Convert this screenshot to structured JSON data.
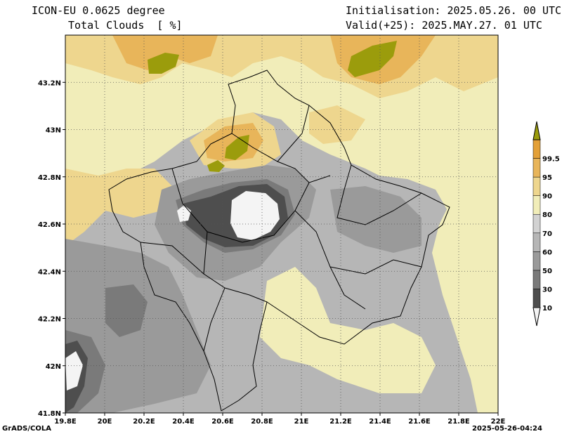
{
  "header": {
    "model": "ICON-EU 0.0625 degree",
    "variable": "Total Clouds  [ %]",
    "init": "Initialisation: 2025.05.26. 00 UTC",
    "valid": "Valid(+25): 2025.MAY.27. 01 UTC"
  },
  "map": {
    "lon_range": [
      19.8,
      22.0
    ],
    "lat_range": [
      41.8,
      43.4
    ],
    "x_ticks": [
      "19.8E",
      "20E",
      "20.2E",
      "20.4E",
      "20.6E",
      "20.8E",
      "21E",
      "21.2E",
      "21.4E",
      "21.6E",
      "21.8E",
      "22E"
    ],
    "y_ticks": [
      "41.8N",
      "42N",
      "42.2N",
      "42.4N",
      "42.6N",
      "42.8N",
      "43N",
      "43.2N"
    ],
    "gridlines": true
  },
  "colorbar": {
    "labels": [
      "10",
      "30",
      "50",
      "60",
      "70",
      "80",
      "90",
      "95",
      "99.5"
    ],
    "colors": [
      "#f4f4f4",
      "#4e4e4e",
      "#7a7a7a",
      "#9a9a9a",
      "#b6b6b6",
      "#d2d2d2",
      "#f1edb9",
      "#eed68e",
      "#e8b55a",
      "#e3a038",
      "#9b9c0c"
    ]
  },
  "footer": {
    "credit": "GrADS/COLA",
    "timestamp": "2025-05-26-04:24"
  }
}
